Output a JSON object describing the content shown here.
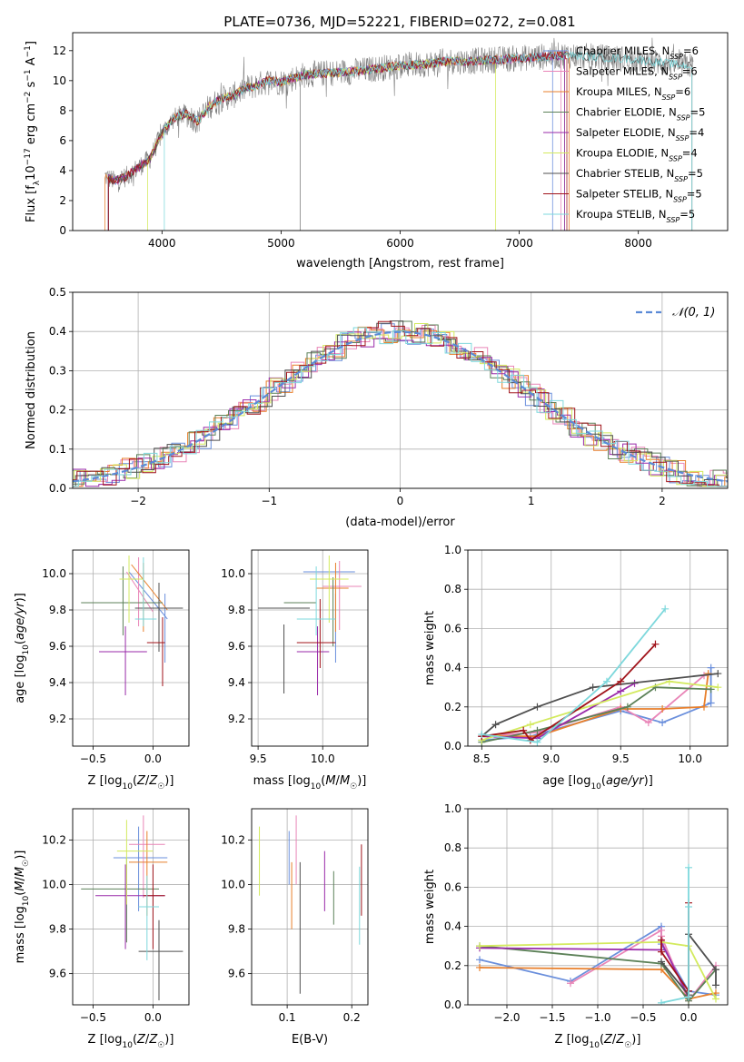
{
  "colors": {
    "chabrier_miles": "#6a8fdc",
    "salpeter_miles": "#e985b7",
    "kroupa_miles": "#e87f2b",
    "chabrier_elodie": "#5c8158",
    "salpeter_elodie": "#9a2aa9",
    "kroupa_elodie": "#d3ea5e",
    "chabrier_stelib": "#4f4f4f",
    "salpeter_stelib": "#a0131a",
    "kroupa_stelib": "#7ed8dc",
    "gaussian": "#5b8ad6",
    "grid": "#b0b0b0"
  },
  "chart_data": [
    {
      "id": "spectrum",
      "type": "line",
      "title": "PLATE=0736, MJD=52221, FIBERID=0272, z=0.081",
      "xlabel": "wavelength [Angstrom, rest frame]",
      "ylabel": "Flux [fλ10⁻¹⁷ erg cm⁻² s⁻¹ A⁻¹]",
      "xlim": [
        3250,
        8750
      ],
      "ylim": [
        0,
        13.2
      ],
      "xticks": [
        4000,
        5000,
        6000,
        7000,
        8000
      ],
      "yticks": [
        0,
        2,
        4,
        6,
        8,
        10,
        12
      ],
      "grid": false,
      "legend_position": "top-right",
      "legend": [
        "Chabrier MILES, N_SSP=6",
        "Salpeter MILES, N_SSP=6",
        "Kroupa MILES, N_SSP=6",
        "Chabrier ELODIE, N_SSP=5",
        "Salpeter ELODIE, N_SSP=4",
        "Kroupa ELODIE, N_SSP=4",
        "Chabrier STELIB, N_SSP=5",
        "Salpeter STELIB, N_SSP=5",
        "Kroupa STELIB, N_SSP=5"
      ],
      "legend_labels": [
        {
          "pre": "Chabrier MILES, N",
          "sub": "SSP",
          "post": "=6"
        },
        {
          "pre": "Salpeter MILES, N",
          "sub": "SSP",
          "post": "=6"
        },
        {
          "pre": "Kroupa MILES, N",
          "sub": "SSP",
          "post": "=6"
        },
        {
          "pre": "Chabrier ELODIE, N",
          "sub": "SSP",
          "post": "=5"
        },
        {
          "pre": "Salpeter ELODIE, N",
          "sub": "SSP",
          "post": "=4"
        },
        {
          "pre": "Kroupa ELODIE, N",
          "sub": "SSP",
          "post": "=4"
        },
        {
          "pre": "Chabrier STELIB, N",
          "sub": "SSP",
          "post": "=5"
        },
        {
          "pre": "Salpeter STELIB, N",
          "sub": "SSP",
          "post": "=5"
        },
        {
          "pre": "Kroupa STELIB, N",
          "sub": "SSP",
          "post": "=5"
        }
      ],
      "continuum_x": [
        3500,
        3600,
        3700,
        3800,
        3900,
        4000,
        4100,
        4200,
        4300,
        4400,
        4500,
        4600,
        4700,
        4800,
        4900,
        5000,
        5200,
        5400,
        5600,
        5800,
        6000,
        6200,
        6400,
        6600,
        6800,
        7000,
        7200,
        7400,
        7600,
        7800,
        8000,
        8200,
        8400
      ],
      "continuum_y": [
        3.7,
        3.3,
        3.6,
        4.2,
        4.8,
        6.5,
        7.5,
        7.8,
        7.3,
        8.3,
        8.8,
        9.0,
        9.5,
        9.7,
        10.0,
        9.9,
        10.4,
        10.5,
        10.6,
        10.8,
        11.0,
        11.1,
        11.3,
        11.3,
        11.4,
        11.5,
        11.6,
        11.7,
        11.6,
        11.5,
        11.4,
        11.2,
        11.0
      ],
      "model_ranges": [
        [
          3550,
          7280
        ],
        [
          3550,
          7350
        ],
        [
          3520,
          7420
        ],
        [
          3550,
          7380
        ],
        [
          3550,
          7380
        ],
        [
          3880,
          6800
        ],
        [
          3550,
          8450
        ],
        [
          3550,
          7400
        ],
        [
          4020,
          8450
        ]
      ]
    },
    {
      "id": "residuals",
      "type": "line",
      "xlabel": "(data-model)/error",
      "ylabel": "Normed distribution",
      "xlim": [
        -2.5,
        2.5
      ],
      "ylim": [
        0,
        0.5
      ],
      "xticks": [
        -2,
        -1,
        0,
        1,
        2
      ],
      "yticks": [
        0.0,
        0.1,
        0.2,
        0.3,
        0.4,
        0.5
      ],
      "grid": true,
      "legend_position": "top-right",
      "legend": [
        "𝒩(0, 1)"
      ],
      "bin_width": 0.1
    },
    {
      "id": "age-vs-Z",
      "type": "scatter",
      "xlabel": "Z [log10(Z/Z☉)]",
      "ylabel": "age  [log10(age/yr)]",
      "xlim": [
        -0.67,
        0.3
      ],
      "ylim": [
        9.05,
        10.13
      ],
      "xticks": [
        -0.5,
        0.0
      ],
      "yticks": [
        9.2,
        9.4,
        9.6,
        9.8,
        10.0
      ],
      "grid": true,
      "crosses": [
        {
          "x": [
            -0.2,
            0.12
          ],
          "y": [
            10.01,
            9.75
          ],
          "cx": 0.1,
          "cy": 9.75
        },
        {
          "x": [
            -0.22,
            0.0
          ],
          "y": [
            10.01,
            9.79
          ],
          "cx": -0.12,
          "cy": 9.95
        },
        {
          "x": [
            -0.18,
            0.12
          ],
          "y": [
            10.05,
            9.8
          ],
          "cx": -0.08,
          "cy": 9.92
        },
        {
          "x": [
            -0.6,
            0.08
          ],
          "y": [
            9.84,
            9.84
          ],
          "cx": -0.25,
          "cy": 9.9
        },
        {
          "x": [
            -0.45,
            -0.05
          ],
          "y": [
            9.57,
            9.57
          ],
          "cx": -0.23,
          "cy": 9.57
        },
        {
          "x": [
            -0.28,
            -0.08
          ],
          "y": [
            9.97,
            9.97
          ],
          "cx": -0.2,
          "cy": 9.97
        },
        {
          "x": [
            -0.15,
            0.25
          ],
          "y": [
            9.81,
            9.81
          ],
          "cx": 0.05,
          "cy": 9.81
        },
        {
          "x": [
            -0.05,
            0.1
          ],
          "y": [
            9.62,
            9.62
          ],
          "cx": 0.08,
          "cy": 9.62
        },
        {
          "x": [
            -0.15,
            0.03
          ],
          "y": [
            9.75,
            9.75
          ],
          "cx": -0.08,
          "cy": 9.95
        }
      ]
    },
    {
      "id": "age-vs-mass",
      "type": "scatter",
      "xlabel": "mass [log10(M/M☉)]",
      "ylabel": "",
      "xlim": [
        9.45,
        10.35
      ],
      "ylim": [
        9.05,
        10.13
      ],
      "xticks": [
        9.5,
        10.0
      ],
      "yticks": [
        9.2,
        9.4,
        9.6,
        9.8,
        10.0
      ],
      "grid": true,
      "crosses": [
        {
          "x": [
            9.85,
            10.25
          ],
          "y": [
            10.01,
            10.01
          ],
          "cx": 10.1,
          "cy": 9.75
        },
        {
          "x": [
            10.0,
            10.3
          ],
          "y": [
            9.93,
            9.93
          ],
          "cx": 10.13,
          "cy": 9.93
        },
        {
          "x": [
            9.95,
            10.2
          ],
          "y": [
            9.92,
            9.92
          ],
          "cx": 10.1,
          "cy": 9.92
        },
        {
          "x": [
            9.7,
            9.95
          ],
          "y": [
            9.84,
            9.84
          ],
          "cx": 10.08,
          "cy": 9.84
        },
        {
          "x": [
            9.8,
            10.05
          ],
          "y": [
            9.57,
            9.57
          ],
          "cx": 9.96,
          "cy": 9.57
        },
        {
          "x": [
            9.9,
            10.2
          ],
          "y": [
            9.97,
            9.97
          ],
          "cx": 10.05,
          "cy": 9.97
        },
        {
          "x": [
            9.5,
            9.9
          ],
          "y": [
            9.81,
            9.81
          ],
          "cx": 9.7,
          "cy": 9.58
        },
        {
          "x": [
            9.8,
            10.1
          ],
          "y": [
            9.62,
            9.62
          ],
          "cx": 9.98,
          "cy": 9.72
        },
        {
          "x": [
            9.8,
            10.1
          ],
          "y": [
            9.75,
            9.75
          ],
          "cx": 9.95,
          "cy": 9.9
        }
      ]
    },
    {
      "id": "weight-vs-age",
      "type": "line",
      "xlabel": "age  [log10(age/yr)]",
      "ylabel": "mass weight",
      "xlim": [
        8.4,
        10.27
      ],
      "ylim": [
        0,
        1.0
      ],
      "xticks": [
        8.5,
        9.0,
        9.5,
        10.0
      ],
      "yticks": [
        0.0,
        0.2,
        0.4,
        0.6,
        0.8,
        1.0
      ],
      "grid": true,
      "series": [
        {
          "x": [
            8.5,
            8.85,
            9.5,
            9.8,
            10.15,
            10.15
          ],
          "y": [
            0.03,
            0.05,
            0.18,
            0.12,
            0.22,
            0.4
          ]
        },
        {
          "x": [
            8.5,
            8.9,
            9.5,
            9.7,
            10.1
          ],
          "y": [
            0.05,
            0.07,
            0.2,
            0.12,
            0.36
          ]
        },
        {
          "x": [
            8.5,
            8.9,
            9.5,
            9.8,
            10.1,
            10.13
          ],
          "y": [
            0.05,
            0.05,
            0.19,
            0.19,
            0.2,
            0.37
          ]
        },
        {
          "x": [
            8.5,
            8.9,
            9.55,
            9.75,
            10.15
          ],
          "y": [
            0.02,
            0.08,
            0.2,
            0.3,
            0.29
          ]
        },
        {
          "x": [
            8.5,
            8.9,
            9.5,
            9.6
          ],
          "y": [
            0.05,
            0.04,
            0.28,
            0.32
          ]
        },
        {
          "x": [
            8.5,
            8.85,
            9.85,
            10.2
          ],
          "y": [
            0.03,
            0.11,
            0.33,
            0.3
          ]
        },
        {
          "x": [
            8.5,
            8.6,
            8.9,
            9.3,
            10.2
          ],
          "y": [
            0.05,
            0.11,
            0.2,
            0.3,
            0.37
          ]
        },
        {
          "x": [
            8.5,
            8.8,
            8.85,
            9.5,
            9.75
          ],
          "y": [
            0.05,
            0.08,
            0.03,
            0.33,
            0.52
          ]
        },
        {
          "x": [
            8.5,
            8.9,
            9.4,
            9.82
          ],
          "y": [
            0.06,
            0.02,
            0.33,
            0.7
          ]
        }
      ]
    },
    {
      "id": "mass-vs-Z",
      "type": "scatter",
      "xlabel": "Z [log10(Z/Z☉)]",
      "ylabel": "mass [log10(M/M☉)]",
      "xlim": [
        -0.67,
        0.3
      ],
      "ylim": [
        9.46,
        10.34
      ],
      "xticks": [
        -0.5,
        0.0
      ],
      "yticks": [
        9.6,
        9.8,
        10.0,
        10.2
      ],
      "grid": true,
      "crosses": [
        {
          "x": [
            -0.33,
            0.12
          ],
          "y": [
            10.12,
            10.12
          ],
          "cx": -0.12,
          "cy": 10.12
        },
        {
          "x": [
            -0.2,
            0.1
          ],
          "y": [
            10.18,
            10.18
          ],
          "cx": -0.08,
          "cy": 10.18
        },
        {
          "x": [
            -0.2,
            0.12
          ],
          "y": [
            10.1,
            10.1
          ],
          "cx": -0.05,
          "cy": 10.1
        },
        {
          "x": [
            -0.6,
            0.05
          ],
          "y": [
            9.98,
            9.98
          ],
          "cx": -0.22,
          "cy": 9.98
        },
        {
          "x": [
            -0.48,
            0.1
          ],
          "y": [
            9.95,
            9.95
          ],
          "cx": -0.23,
          "cy": 9.95
        },
        {
          "x": [
            -0.3,
            0.0
          ],
          "y": [
            10.15,
            10.15
          ],
          "cx": -0.22,
          "cy": 10.15
        },
        {
          "x": [
            -0.12,
            0.25
          ],
          "y": [
            9.7,
            9.7
          ],
          "cx": 0.05,
          "cy": 9.7
        },
        {
          "x": [
            -0.08,
            0.1
          ],
          "y": [
            9.95,
            9.95
          ],
          "cx": 0.0,
          "cy": 9.95
        },
        {
          "x": [
            -0.12,
            0.05
          ],
          "y": [
            9.9,
            9.9
          ],
          "cx": -0.05,
          "cy": 9.9
        }
      ]
    },
    {
      "id": "mass-vs-EBV",
      "type": "scatter",
      "xlabel": "E(B-V)",
      "ylabel": "",
      "xlim": [
        0.045,
        0.225
      ],
      "ylim": [
        9.46,
        10.34
      ],
      "xticks": [
        0.1,
        0.2
      ],
      "yticks": [
        9.6,
        9.8,
        10.0,
        10.2
      ],
      "grid": true,
      "bars": [
        {
          "x": 0.103,
          "y": [
            10.0,
            10.24
          ]
        },
        {
          "x": 0.114,
          "y": [
            10.0,
            10.31
          ]
        },
        {
          "x": 0.107,
          "y": [
            9.8,
            10.1
          ]
        },
        {
          "x": 0.172,
          "y": [
            9.82,
            10.06
          ]
        },
        {
          "x": 0.158,
          "y": [
            9.88,
            10.15
          ]
        },
        {
          "x": 0.057,
          "y": [
            9.95,
            10.26
          ]
        },
        {
          "x": 0.12,
          "y": [
            9.51,
            10.1
          ]
        },
        {
          "x": 0.215,
          "y": [
            9.86,
            10.18
          ]
        },
        {
          "x": 0.212,
          "y": [
            9.73,
            10.08
          ]
        }
      ]
    },
    {
      "id": "weight-vs-Z",
      "type": "line",
      "xlabel": "Z [log10(Z/Z☉)]",
      "ylabel": "mass weight",
      "xlim": [
        -2.43,
        0.43
      ],
      "ylim": [
        0,
        1.0
      ],
      "xticks": [
        -2.0,
        -1.5,
        -1.0,
        -0.5,
        0.0
      ],
      "yticks": [
        0.0,
        0.2,
        0.4,
        0.6,
        0.8,
        1.0
      ],
      "grid": true,
      "series": [
        {
          "x": [
            -2.3,
            -1.3,
            -0.3,
            -0.3,
            0.0,
            0.3
          ],
          "y": [
            0.23,
            0.12,
            0.4,
            0.31,
            0.07,
            0.05
          ]
        },
        {
          "x": [
            -1.3,
            -0.3,
            -0.3,
            0.0,
            0.3
          ],
          "y": [
            0.11,
            0.38,
            0.35,
            0.02,
            0.2
          ]
        },
        {
          "x": [
            -2.3,
            -0.3,
            0.0,
            0.3
          ],
          "y": [
            0.19,
            0.18,
            0.03,
            0.06
          ]
        },
        {
          "x": [
            -2.3,
            -0.3,
            0.0,
            0.3
          ],
          "y": [
            0.3,
            0.21,
            0.02,
            0.18
          ]
        },
        {
          "x": [
            -2.3,
            -0.3,
            -0.3,
            0.0
          ],
          "y": [
            0.29,
            0.28,
            0.32,
            0.04
          ]
        },
        {
          "x": [
            -2.3,
            -0.3,
            0.0,
            0.3
          ],
          "y": [
            0.3,
            0.32,
            0.3,
            0.03
          ]
        },
        {
          "x": [
            -0.3,
            0.0,
            0.0,
            0.3,
            0.3
          ],
          "y": [
            0.22,
            0.05,
            0.36,
            0.18,
            0.1
          ]
        },
        {
          "x": [
            -0.3,
            -0.3,
            0.0,
            0.0
          ],
          "y": [
            0.33,
            0.27,
            0.07,
            0.52
          ]
        },
        {
          "x": [
            -0.3,
            0.0,
            0.0,
            0.0
          ],
          "y": [
            0.01,
            0.04,
            0.7,
            0.5
          ]
        }
      ]
    }
  ]
}
